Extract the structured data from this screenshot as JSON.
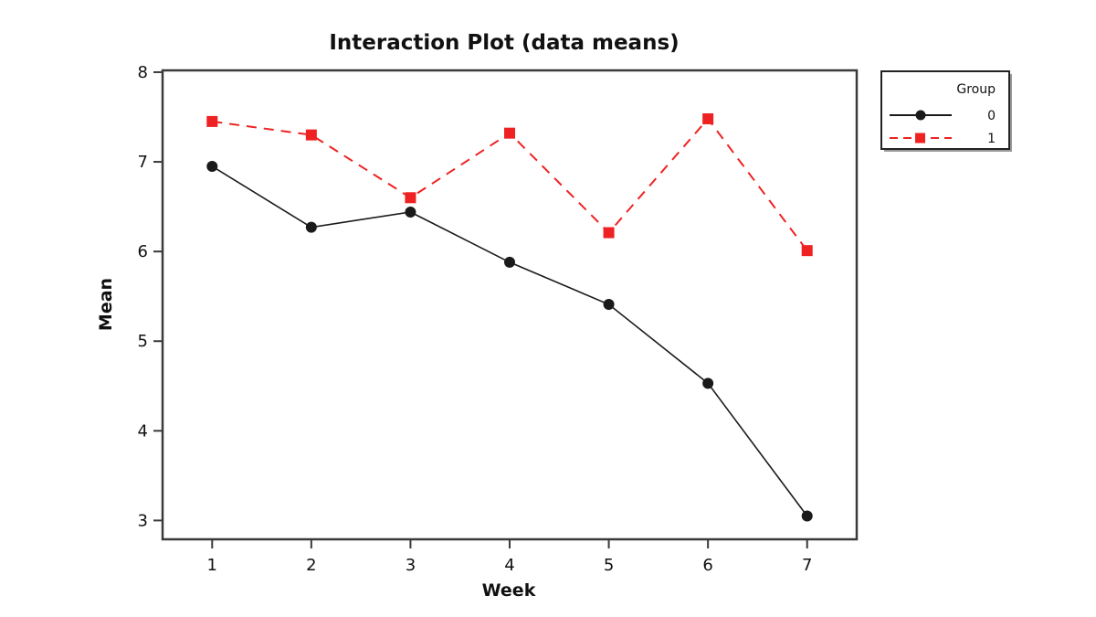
{
  "page": {
    "background": "#ffffff"
  },
  "chart_data": {
    "type": "line",
    "title": "Interaction Plot (data means)",
    "xlabel": "Week",
    "ylabel": "Mean",
    "x": [
      1,
      2,
      3,
      4,
      5,
      6,
      7
    ],
    "series": [
      {
        "name": "0",
        "values": [
          6.95,
          6.27,
          6.44,
          5.88,
          5.41,
          4.53,
          3.05
        ],
        "color": "#1a1a1a",
        "marker": "circle",
        "line_style": "solid"
      },
      {
        "name": "1",
        "values": [
          7.45,
          7.3,
          6.6,
          7.32,
          6.21,
          7.48,
          6.01
        ],
        "color": "#ee2222",
        "marker": "square",
        "line_style": "dashed"
      }
    ],
    "xlim": [
      0.5,
      7.5
    ],
    "ylim": [
      2.79,
      8.02
    ],
    "xticks": [
      "1",
      "2",
      "3",
      "4",
      "5",
      "6",
      "7"
    ],
    "yticks": [
      "3",
      "4",
      "5",
      "6",
      "7",
      "8"
    ],
    "grid": false,
    "legend": {
      "title": "Group",
      "entries": [
        "0",
        "1"
      ],
      "position": "outside-top-right"
    },
    "frame_color": "#3a3a3a",
    "shadow_color": "#9b9b9b"
  }
}
